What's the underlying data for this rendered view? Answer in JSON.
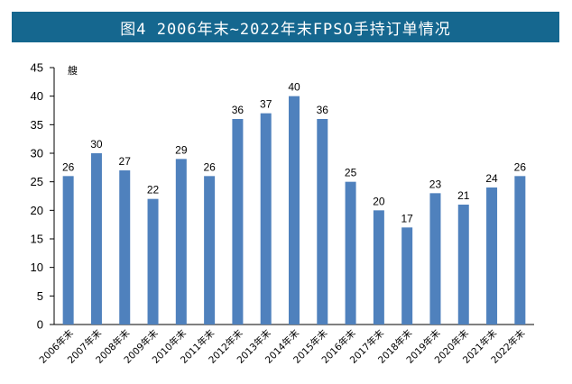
{
  "chart_data": {
    "type": "bar",
    "title": "图4 2006年末~2022年末FPSO手持订单情况",
    "ylabel": "艘",
    "xlabel": "",
    "ylim": [
      0,
      45
    ],
    "yticks": [
      0,
      5,
      10,
      15,
      20,
      25,
      30,
      35,
      40,
      45
    ],
    "categories": [
      "2006年末",
      "2007年末",
      "2008年末",
      "2009年末",
      "2010年末",
      "2011年末",
      "2012年末",
      "2013年末",
      "2014年末",
      "2015年末",
      "2016年末",
      "2017年末",
      "2018年末",
      "2019年末",
      "2020年末",
      "2021年末",
      "2022年末"
    ],
    "values": [
      26,
      30,
      27,
      22,
      29,
      26,
      36,
      37,
      40,
      36,
      25,
      20,
      17,
      23,
      21,
      24,
      26
    ],
    "bar_color": "#4f81bd",
    "title_bg": "#15678f",
    "grid": false,
    "legend": "none"
  }
}
